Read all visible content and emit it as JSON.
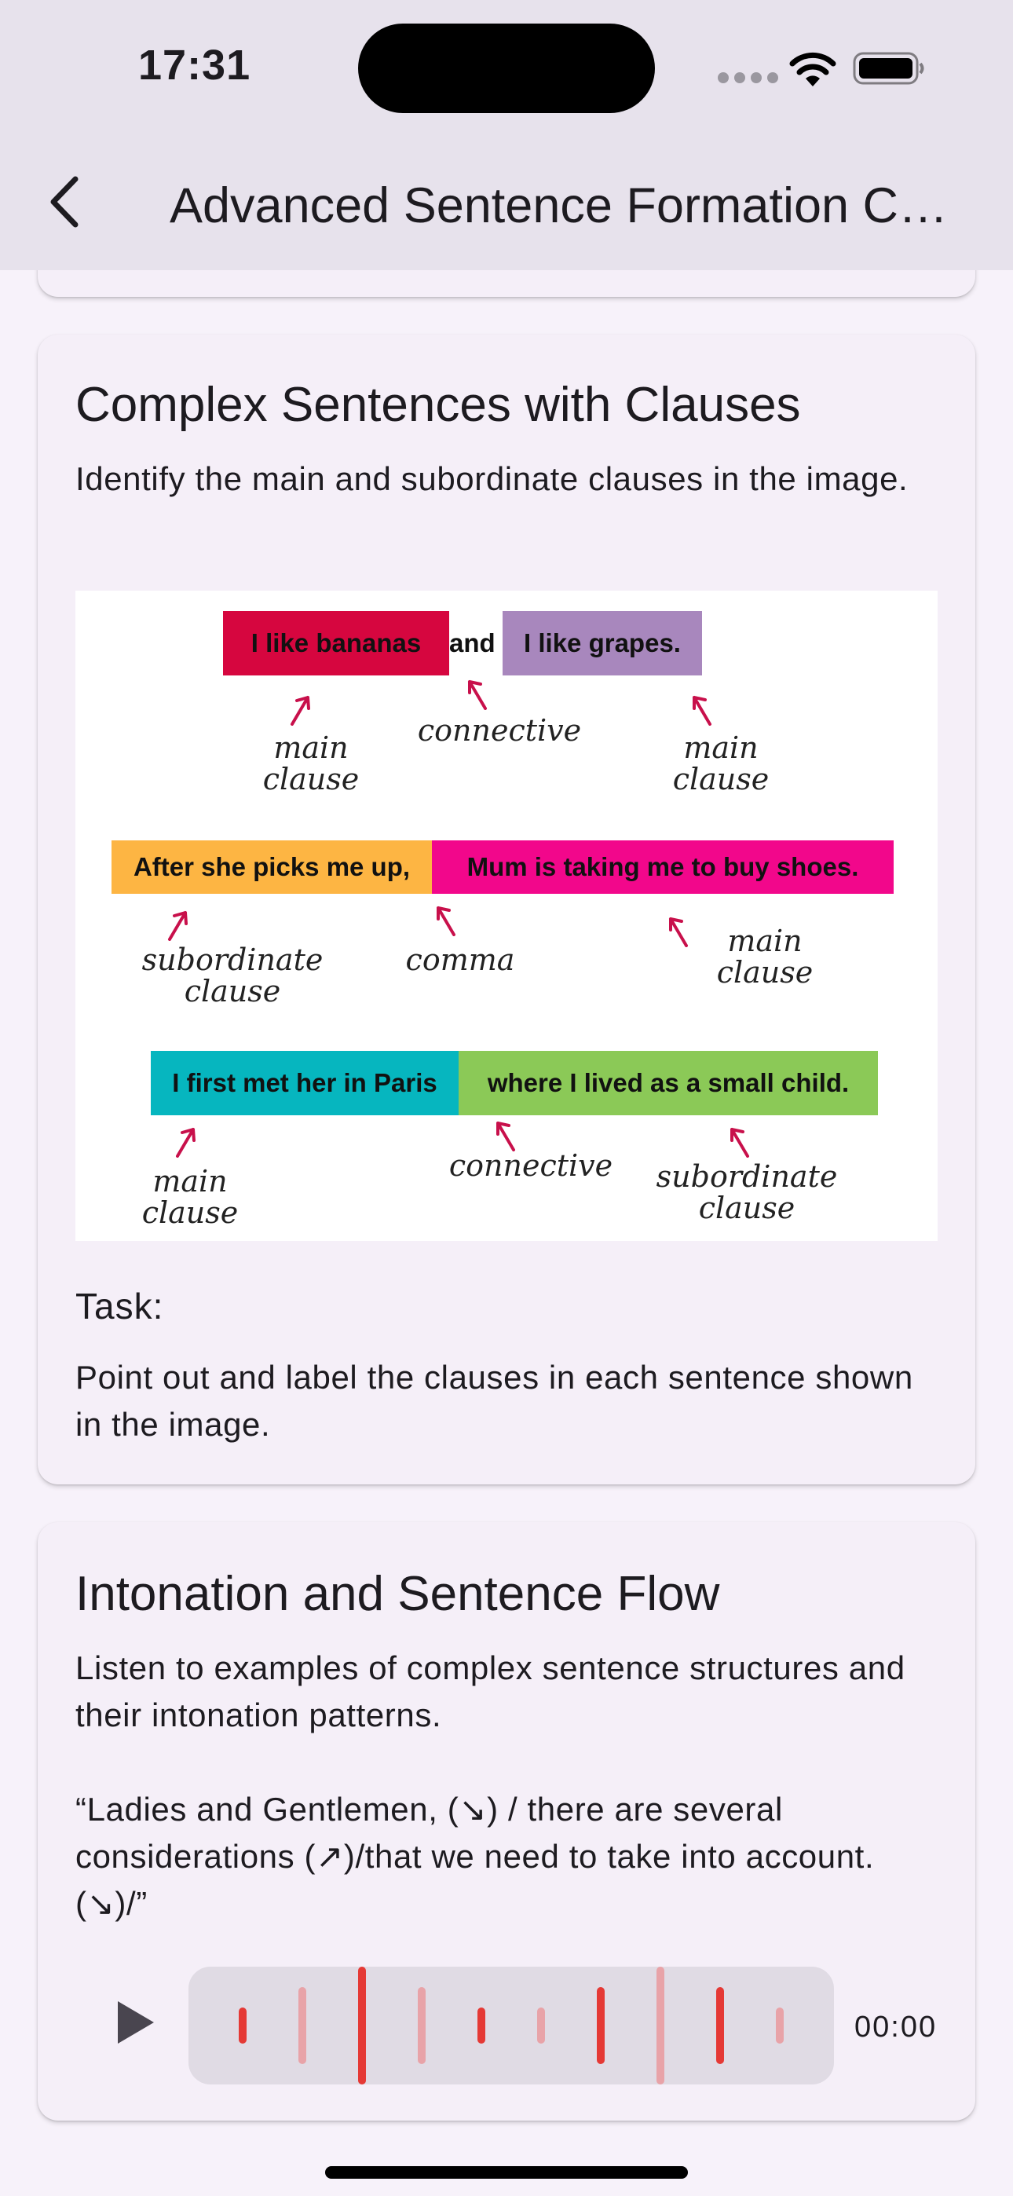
{
  "status_bar": {
    "time": "17:31"
  },
  "app_bar": {
    "title": "Advanced Sentence Formation Cou..."
  },
  "card_complex": {
    "title": "Complex Sentences with Clauses",
    "description": "Identify the main and subordinate clauses in the image.",
    "figure": {
      "row1": {
        "part1": "I like bananas",
        "connector": "and",
        "part2": "I like grapes.",
        "label1": "main\nclause",
        "label2": "connective",
        "label3": "main\nclause"
      },
      "row2": {
        "part1": "After she picks me up,",
        "part2": "Mum is taking me to buy shoes.",
        "label1": "subordinate\nclause",
        "label2": "comma",
        "label3": "main\nclause"
      },
      "row3": {
        "part1": "I first met her in Paris",
        "part2": "where I lived as a small child.",
        "label1": "main\nclause",
        "label2": "connective",
        "label3": "subordinate\nclause"
      },
      "colors": {
        "red": "#d6063f",
        "purple": "#a887bd",
        "orange": "#fdb543",
        "pink": "#f2078b",
        "teal": "#06b6bf",
        "green": "#8bc957",
        "arrow": "#c8104b"
      }
    },
    "task_heading": "Task:",
    "task_text": "Point out and label the clauses in each sentence shown in the image."
  },
  "card_intonation": {
    "title": "Intonation and Sentence Flow",
    "description": "Listen to examples of complex sentence structures and their intonation patterns.\n\n“Ladies and Gentlemen, (↘) / there are several considerations (↗)/that we need to take into account. (↘)/”",
    "player": {
      "play_icon": "play-icon",
      "duration": "00:00",
      "accent": "#e53935"
    }
  }
}
